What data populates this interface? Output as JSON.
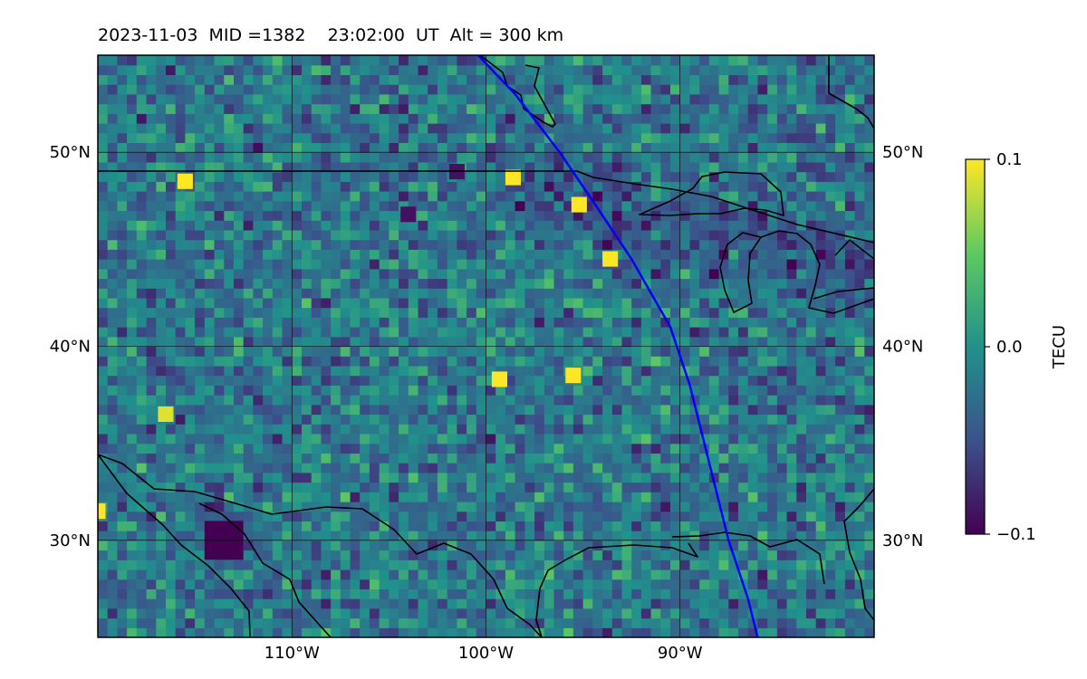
{
  "title": "2023-11-03  MID =1382    23:02:00  UT  Alt = 300 km",
  "chart_data": {
    "type": "heatmap",
    "title": "2023-11-03  MID =1382    23:02:00  UT  Alt = 300 km",
    "projection": "lat-lon map",
    "lon_range": [
      -120,
      -80
    ],
    "lat_range": [
      25,
      55
    ],
    "x_ticks": [
      {
        "value": -110,
        "label": "110°W"
      },
      {
        "value": -100,
        "label": "100°W"
      },
      {
        "value": -90,
        "label": "90°W"
      }
    ],
    "y_ticks": [
      {
        "value": 30,
        "label": "30°N"
      },
      {
        "value": 40,
        "label": "40°N"
      },
      {
        "value": 50,
        "label": "50°N"
      }
    ],
    "grid": true,
    "colormap": "viridis",
    "colorbar": {
      "label": "TECU",
      "min": -0.1,
      "max": 0.1,
      "ticks": [
        {
          "value": 0.1,
          "label": "0.1"
        },
        {
          "value": 0.0,
          "label": "0.0"
        },
        {
          "value": -0.1,
          "label": "−0.1"
        }
      ]
    },
    "features": [
      {
        "name": "coastlines and borders",
        "color": "#000000"
      },
      {
        "name": "satellite ground track",
        "color": "#0000ff"
      }
    ],
    "ground_track": [
      [
        -100.4,
        55
      ],
      [
        -98.5,
        53
      ],
      [
        -96.2,
        50
      ],
      [
        -94.5,
        47.5
      ],
      [
        -92.5,
        44.5
      ],
      [
        -90.5,
        41
      ],
      [
        -89.5,
        38
      ],
      [
        -88.5,
        34
      ],
      [
        -87.5,
        30
      ],
      [
        -86.5,
        27
      ],
      [
        -86,
        25
      ]
    ],
    "notable_features": [
      {
        "lon": -113.5,
        "lat": 30,
        "value": -0.1
      },
      {
        "lon": -120,
        "lat": 31.5,
        "value": 0.1
      },
      {
        "lon": -101.5,
        "lat": 49,
        "value": -0.09
      },
      {
        "lon": -104,
        "lat": 46.8,
        "value": -0.09
      },
      {
        "lon": -95.2,
        "lat": 47.3,
        "value": 0.1
      },
      {
        "lon": -98.6,
        "lat": 48.7,
        "value": 0.1
      },
      {
        "lon": -93.6,
        "lat": 44.5,
        "value": 0.1
      },
      {
        "lon": -95.5,
        "lat": 38.5,
        "value": 0.1
      },
      {
        "lon": -99.3,
        "lat": 38.3,
        "value": 0.1
      },
      {
        "lon": -116.5,
        "lat": 36.5,
        "value": 0.09
      },
      {
        "lon": -115.5,
        "lat": 48.5,
        "value": 0.1
      }
    ]
  }
}
